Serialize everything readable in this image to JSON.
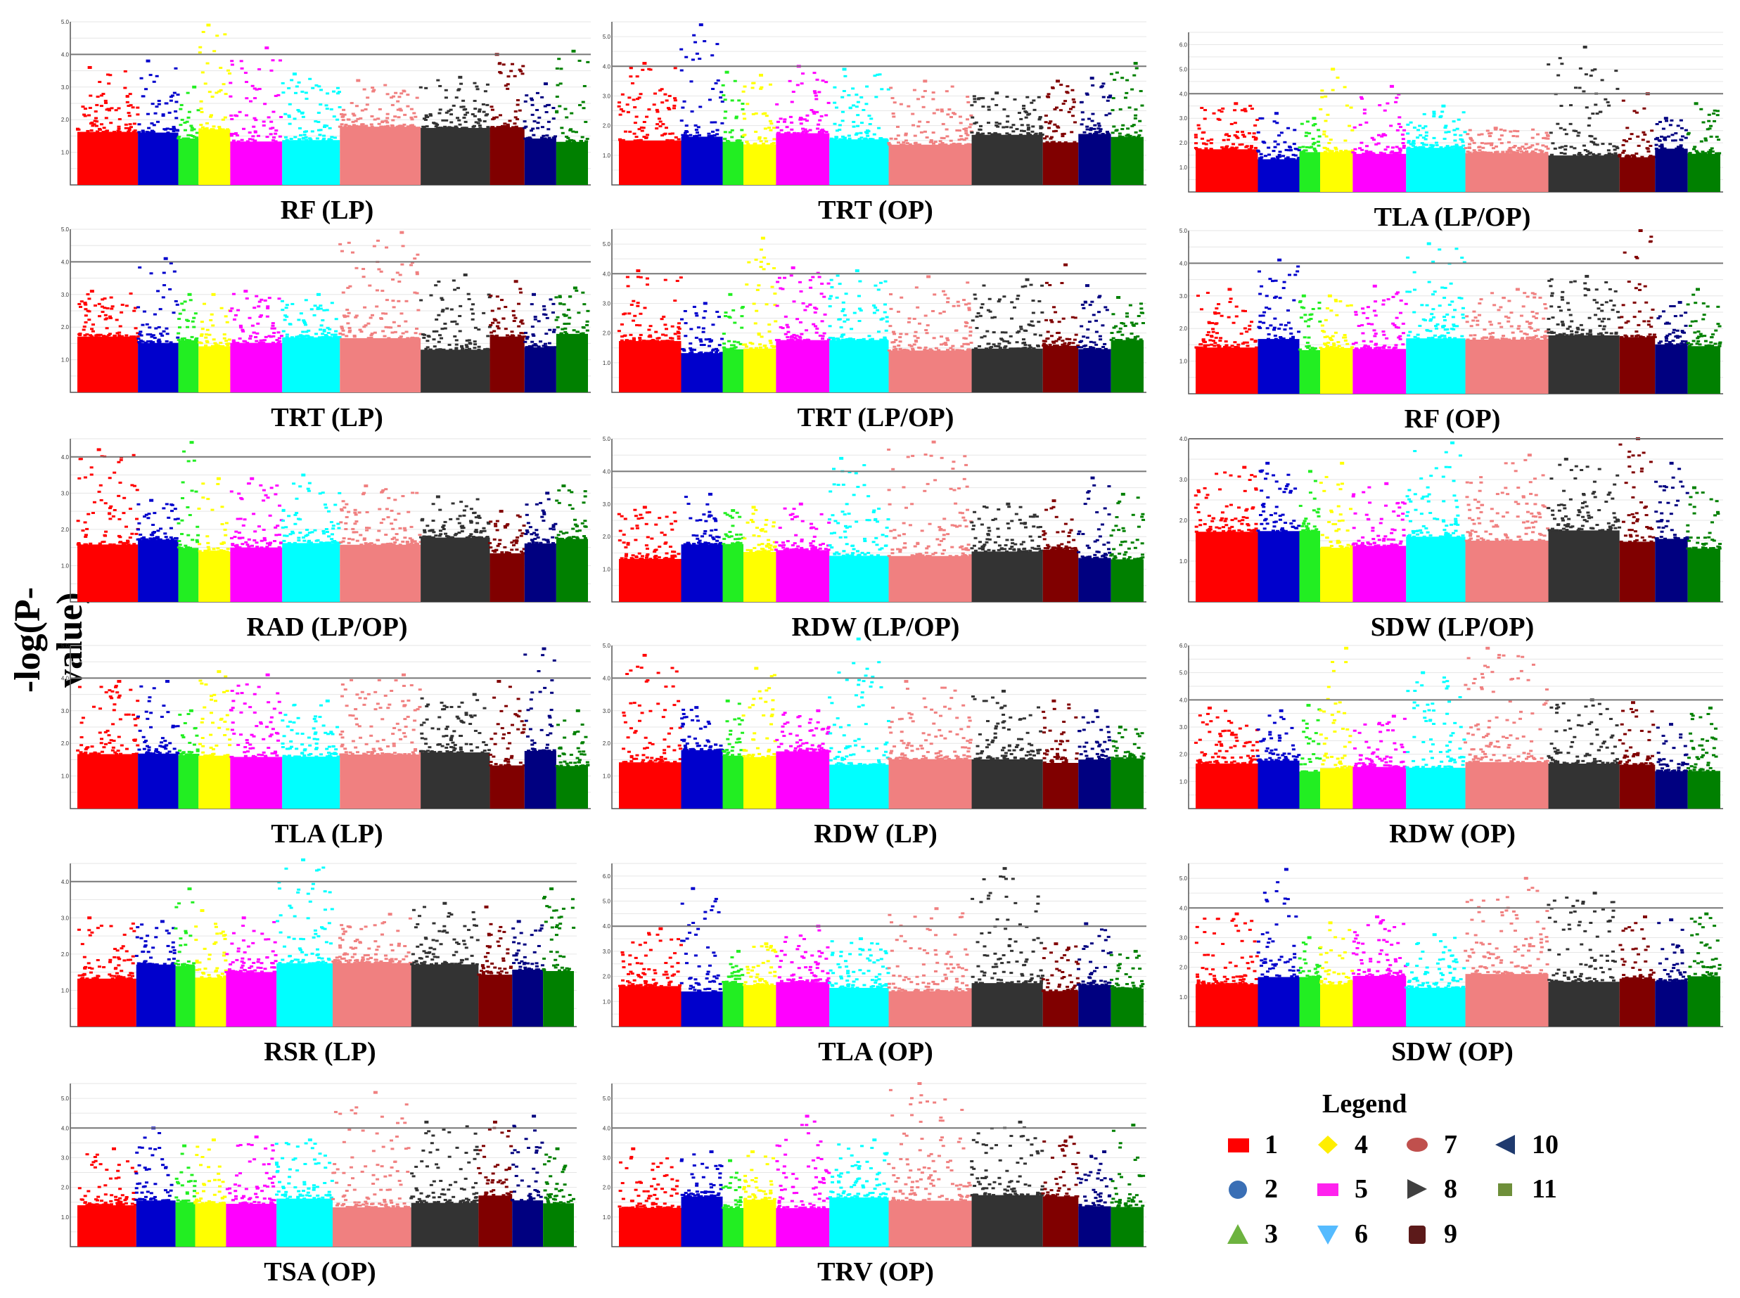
{
  "figure": {
    "y_axis_label": "-log(P-value)"
  },
  "chromosome_colors": [
    "#ff0000",
    "#0000cc",
    "#22ee22",
    "#ffff00",
    "#ff00ff",
    "#00ffff",
    "#f08080",
    "#333333",
    "#800000",
    "#000080",
    "#008000"
  ],
  "chart_data": [
    {
      "type": "scatter",
      "title": "RF (LP)",
      "ylim": [
        0,
        5
      ],
      "threshold": 4,
      "yticks": [
        "1.0",
        "2.0",
        "3.0",
        "4.0",
        "5.0"
      ],
      "peaks": [
        3.6,
        3.8,
        3.0,
        4.9,
        4.2,
        3.4,
        3.2,
        3.3,
        4.0,
        3.1,
        4.1
      ]
    },
    {
      "type": "scatter",
      "title": "TRT (OP)",
      "ylim": [
        0,
        5.5
      ],
      "threshold": 4,
      "yticks": [
        "1.0",
        "2.0",
        "3.0",
        "4.0",
        "5.0"
      ],
      "peaks": [
        4.1,
        5.4,
        3.8,
        3.7,
        4.0,
        3.9,
        3.5,
        3.1,
        3.5,
        3.6,
        4.1
      ]
    },
    {
      "type": "scatter",
      "title": "TLA  (LP/OP)",
      "ylim": [
        0,
        6.5
      ],
      "threshold": 4,
      "yticks": [
        "1.0",
        "2.0",
        "3.0",
        "4.0",
        "5.0",
        "6.0"
      ],
      "peaks": [
        3.6,
        3.2,
        3.0,
        5.0,
        4.3,
        3.5,
        2.6,
        5.9,
        4.0,
        3.0,
        3.6
      ]
    },
    {
      "type": "scatter",
      "title": "TRT (LP)",
      "ylim": [
        0,
        5
      ],
      "threshold": 4,
      "yticks": [
        "1.0",
        "2.0",
        "3.0",
        "4.0",
        "5.0"
      ],
      "peaks": [
        3.1,
        4.1,
        3.0,
        3.0,
        3.1,
        3.0,
        4.9,
        3.6,
        3.4,
        3.0,
        3.2
      ]
    },
    {
      "type": "scatter",
      "title": "TRT (LP/OP)",
      "ylim": [
        0,
        5.5
      ],
      "threshold": 4,
      "yticks": [
        "1.0",
        "2.0",
        "3.0",
        "4.0",
        "5.0"
      ],
      "peaks": [
        4.1,
        3.0,
        3.3,
        5.2,
        4.2,
        4.1,
        3.9,
        3.8,
        4.3,
        3.6,
        3.2
      ]
    },
    {
      "type": "scatter",
      "title": "RF (OP)",
      "ylim": [
        0,
        5
      ],
      "threshold": 4,
      "yticks": [
        "1.0",
        "2.0",
        "3.0",
        "4.0",
        "5.0"
      ],
      "peaks": [
        3.2,
        4.1,
        3.0,
        3.0,
        3.3,
        4.6,
        3.2,
        3.6,
        5.0,
        2.8,
        3.2
      ]
    },
    {
      "type": "scatter",
      "title": "RAD (LP/OP)",
      "ylim": [
        0,
        4.5
      ],
      "threshold": 4,
      "yticks": [
        "1.0",
        "2.0",
        "3.0",
        "4.0"
      ],
      "peaks": [
        4.2,
        2.8,
        4.4,
        3.4,
        3.4,
        3.5,
        3.2,
        2.9,
        2.5,
        3.0,
        3.2
      ]
    },
    {
      "type": "scatter",
      "title": "RDW (LP/OP)",
      "ylim": [
        0,
        5
      ],
      "threshold": 4,
      "yticks": [
        "1.0",
        "2.0",
        "3.0",
        "4.0",
        "5.0"
      ],
      "peaks": [
        2.9,
        3.3,
        2.8,
        2.9,
        3.0,
        4.4,
        4.9,
        3.0,
        3.1,
        3.8,
        3.3
      ]
    },
    {
      "type": "scatter",
      "title": "SDW (LP/OP)",
      "ylim": [
        0,
        4
      ],
      "threshold": 4,
      "yticks": [
        "1.0",
        "2.0",
        "3.0",
        "4.0"
      ],
      "peaks": [
        3.3,
        3.4,
        3.2,
        3.4,
        2.9,
        3.9,
        3.6,
        3.5,
        4.0,
        3.4,
        2.8
      ]
    },
    {
      "type": "scatter",
      "title": "TLA  (LP)",
      "ylim": [
        0,
        5
      ],
      "threshold": 4,
      "yticks": [
        "1.0",
        "2.0",
        "3.0",
        "4.0",
        "5.0"
      ],
      "peaks": [
        3.9,
        3.9,
        3.0,
        4.2,
        4.1,
        3.3,
        4.1,
        3.5,
        3.9,
        4.9,
        3.0
      ]
    },
    {
      "type": "scatter",
      "title": "RDW (LP)",
      "ylim": [
        0,
        5
      ],
      "threshold": 4,
      "yticks": [
        "1.0",
        "2.0",
        "3.0",
        "4.0",
        "5.0"
      ],
      "peaks": [
        4.7,
        3.1,
        3.3,
        4.3,
        3.0,
        5.2,
        3.9,
        3.6,
        3.3,
        3.0,
        2.5
      ]
    },
    {
      "type": "scatter",
      "title": "RDW (OP)",
      "ylim": [
        0,
        6
      ],
      "threshold": 4,
      "yticks": [
        "1.0",
        "2.0",
        "3.0",
        "4.0",
        "5.0",
        "6.0"
      ],
      "peaks": [
        3.7,
        3.6,
        3.8,
        5.9,
        3.4,
        5.0,
        5.9,
        4.0,
        3.9,
        3.1,
        3.7
      ]
    },
    {
      "type": "scatter",
      "title": "RSR (LP)",
      "ylim": [
        0,
        4.5
      ],
      "threshold": 4,
      "yticks": [
        "1.0",
        "2.0",
        "3.0",
        "4.0"
      ],
      "peaks": [
        3.0,
        2.9,
        3.8,
        3.2,
        3.0,
        4.6,
        3.1,
        3.4,
        3.3,
        2.9,
        3.8
      ]
    },
    {
      "type": "scatter",
      "title": "TLA  (OP)",
      "ylim": [
        0,
        6.5
      ],
      "threshold": 4,
      "yticks": [
        "1.0",
        "2.0",
        "3.0",
        "4.0",
        "5.0",
        "6.0"
      ],
      "peaks": [
        3.9,
        5.5,
        3.0,
        3.3,
        4.0,
        3.5,
        4.7,
        6.3,
        3.3,
        4.1,
        3.0
      ]
    },
    {
      "type": "scatter",
      "title": "SDW (OP)",
      "ylim": [
        0,
        5.5
      ],
      "threshold": 4,
      "yticks": [
        "1.0",
        "2.0",
        "3.0",
        "4.0",
        "5.0"
      ],
      "peaks": [
        3.8,
        5.3,
        3.0,
        3.5,
        3.7,
        3.1,
        5.0,
        4.5,
        3.7,
        3.6,
        3.8
      ]
    },
    {
      "type": "scatter",
      "title": "TSA  (OP)",
      "ylim": [
        0,
        5.5
      ],
      "threshold": 4,
      "yticks": [
        "1.0",
        "2.0",
        "3.0",
        "4.0",
        "5.0"
      ],
      "peaks": [
        3.3,
        4.0,
        3.4,
        3.6,
        3.7,
        3.6,
        5.2,
        4.2,
        4.2,
        4.4,
        3.3
      ]
    },
    {
      "type": "scatter",
      "title": "TRV (OP)",
      "ylim": [
        0,
        5.5
      ],
      "threshold": 4,
      "yticks": [
        "1.0",
        "2.0",
        "3.0",
        "4.0",
        "5.0"
      ],
      "peaks": [
        3.3,
        3.2,
        2.9,
        3.2,
        4.4,
        3.6,
        5.5,
        4.2,
        3.7,
        3.2,
        4.1
      ]
    }
  ],
  "legend": {
    "title": "Legend",
    "items": [
      {
        "label": "1",
        "shape": "square",
        "color": "#ff0000"
      },
      {
        "label": "2",
        "shape": "circle",
        "color": "#3a6fb5"
      },
      {
        "label": "3",
        "shape": "triangle-up",
        "color": "#6db33f"
      },
      {
        "label": "4",
        "shape": "diamond",
        "color": "#ffee00"
      },
      {
        "label": "5",
        "shape": "rect",
        "color": "#ff22ee"
      },
      {
        "label": "6",
        "shape": "triangle-down",
        "color": "#55bbff"
      },
      {
        "label": "7",
        "shape": "ellipse",
        "color": "#c0504d"
      },
      {
        "label": "8",
        "shape": "triangle-right",
        "color": "#404040"
      },
      {
        "label": "9",
        "shape": "rounded-square",
        "color": "#5c1a1a"
      },
      {
        "label": "10",
        "shape": "triangle-left",
        "color": "#1f3a6e"
      },
      {
        "label": "11",
        "shape": "small-square",
        "color": "#6e8f3a"
      }
    ]
  }
}
